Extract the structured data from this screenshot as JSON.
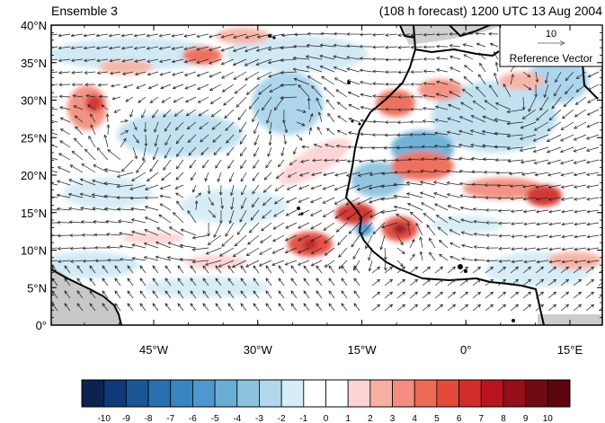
{
  "title_left": "Ensemble 3",
  "title_right": "(108 h forecast) 1200 UTC 13 Aug 2004",
  "reference_vector": {
    "magnitude": "10",
    "label": "Reference Vector"
  },
  "lat_ticks": [
    "0°",
    "5°N",
    "10°N",
    "15°N",
    "20°N",
    "25°N",
    "30°N",
    "35°N",
    "40°N"
  ],
  "lon_ticks": [
    "45°W",
    "30°W",
    "15°W",
    "0°",
    "15°E"
  ],
  "colorbar": {
    "labels": [
      "-10",
      "-9",
      "-8",
      "-7",
      "-6",
      "-5",
      "-4",
      "-3",
      "-2",
      "-1",
      "0",
      "1",
      "2",
      "3",
      "4",
      "5",
      "6",
      "7",
      "8",
      "9",
      "10"
    ],
    "colors": [
      "#0a2350",
      "#0f3a78",
      "#1a5595",
      "#2a6fb0",
      "#3a84c0",
      "#4f97cc",
      "#6aaed6",
      "#8ec3e0",
      "#b3d8ec",
      "#d6ecf6",
      "#ffffff",
      "#ffffff",
      "#fbd3d3",
      "#f7b1a3",
      "#f38e7e",
      "#ee6a57",
      "#e44a3c",
      "#d22d2b",
      "#b8151f",
      "#93101a",
      "#700a12",
      "#5a0510"
    ]
  }
}
